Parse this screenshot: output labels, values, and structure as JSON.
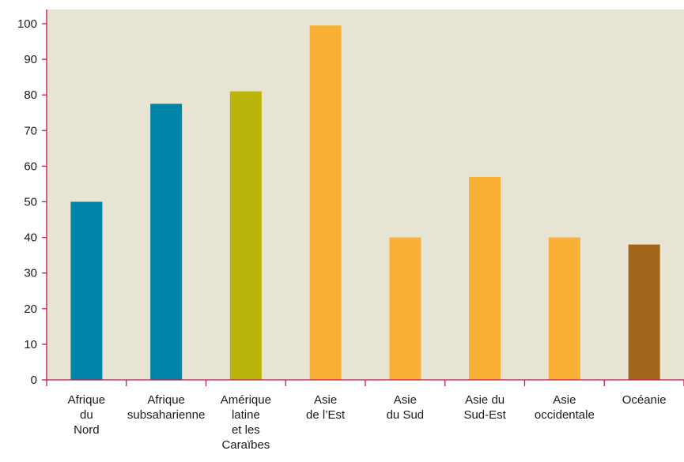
{
  "chart_data": {
    "type": "bar",
    "categories": [
      [
        "Afrique",
        "du",
        "Nord"
      ],
      [
        "Afrique",
        "subsaharienne"
      ],
      [
        "Amérique",
        "latine",
        "et les",
        "Caraïbes"
      ],
      [
        "Asie",
        "de l’Est"
      ],
      [
        "Asie",
        "du Sud"
      ],
      [
        "Asie du",
        "Sud-Est"
      ],
      [
        "Asie",
        "occidentale"
      ],
      [
        "Océanie"
      ]
    ],
    "values": [
      50,
      77.5,
      81,
      99.5,
      40,
      57,
      40,
      38
    ],
    "bar_colors": [
      "#0085a8",
      "#0085a8",
      "#b9b50a",
      "#faaf37",
      "#faaf37",
      "#faaf37",
      "#faaf37",
      "#a06518"
    ],
    "ylim": [
      0,
      100
    ],
    "yticks": [
      0,
      10,
      20,
      30,
      40,
      50,
      60,
      70,
      80,
      90,
      100
    ],
    "title": "",
    "xlabel": "",
    "ylabel": "",
    "grid": false,
    "legend": "none",
    "colors": {
      "plot_background": "#e8e4d4",
      "axis": "#c0174f",
      "text": "#1a1a1a"
    }
  }
}
